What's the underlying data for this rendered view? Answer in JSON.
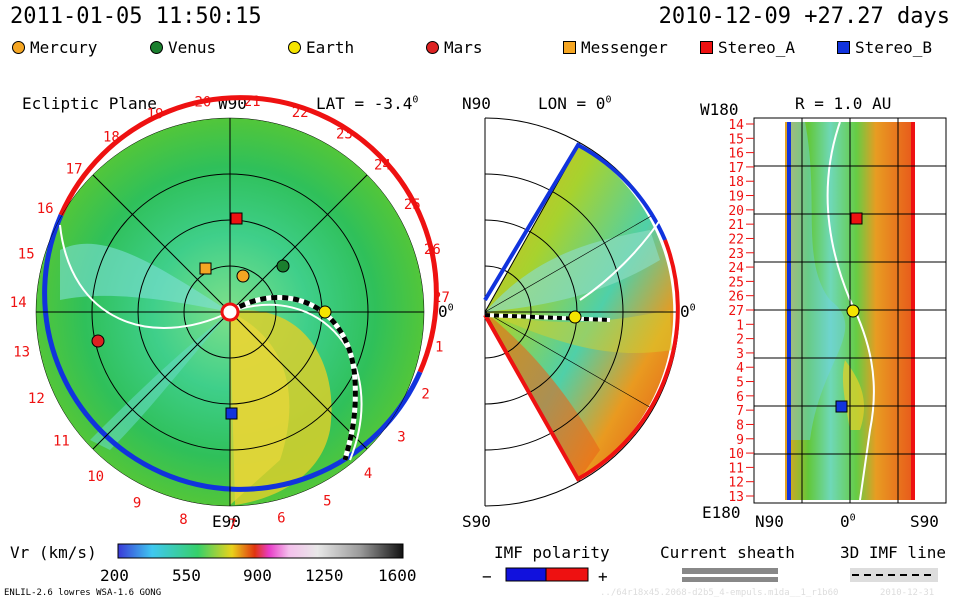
{
  "header": {
    "timestamp": "2011-01-05 11:50:15",
    "carrington": "2010-12-09 +27.27 days"
  },
  "legend": {
    "items": [
      {
        "label": "Mercury",
        "shape": "circle",
        "color": "#f5a623"
      },
      {
        "label": "Venus",
        "shape": "circle",
        "color": "#1a7f2e"
      },
      {
        "label": "Earth",
        "shape": "circle",
        "color": "#f5e400"
      },
      {
        "label": "Mars",
        "shape": "circle",
        "color": "#dd2222"
      },
      {
        "label": "Messenger",
        "shape": "square",
        "color": "#f5a623"
      },
      {
        "label": "Stereo_A",
        "shape": "square",
        "color": "#ee1111"
      },
      {
        "label": "Stereo_B",
        "shape": "square",
        "color": "#1133dd"
      }
    ]
  },
  "panels": {
    "ecliptic": {
      "title": "Ecliptic Plane",
      "top": "W90",
      "lat_label": "LAT = -3.4",
      "lat_sup": "0",
      "right": "0",
      "right_sup": "0",
      "bottom": "E90",
      "day_labels": [
        "1",
        "2",
        "3",
        "4",
        "5",
        "6",
        "7",
        "8",
        "9",
        "10",
        "11",
        "12",
        "13",
        "14",
        "15",
        "16",
        "17",
        "18",
        "19",
        "20",
        "21",
        "22",
        "23",
        "24",
        "25",
        "26",
        "27"
      ]
    },
    "meridional": {
      "top_left": "N90",
      "lon_label": "LON = 0",
      "lon_sup": "0",
      "right": "0",
      "right_sup": "0",
      "bottom_left": "S90"
    },
    "radial": {
      "top_left": "W180",
      "r_label": "R = 1.0 AU",
      "bottom_left": "E180",
      "bottom_n": "N90",
      "bottom_0": "0",
      "bottom_0_sup": "0",
      "bottom_s": "S90",
      "day_labels": [
        "14",
        "15",
        "16",
        "17",
        "18",
        "19",
        "20",
        "21",
        "22",
        "23",
        "24",
        "25",
        "26",
        "27",
        "1",
        "2",
        "3",
        "4",
        "5",
        "6",
        "7",
        "8",
        "9",
        "10",
        "11",
        "12",
        "13"
      ]
    }
  },
  "colorbar": {
    "label": "Vr (km/s)",
    "ticks": [
      "200",
      "550",
      "900",
      "1250",
      "1600"
    ]
  },
  "imf": {
    "label": "IMF polarity",
    "minus": "−",
    "plus": "+",
    "negative_color": "#1111dd",
    "positive_color": "#ee1111"
  },
  "sheath": {
    "label": "Current sheath"
  },
  "imf3d": {
    "label": "3D IMF line"
  },
  "footer": {
    "model": "ENLIL-2.6 lowres WSA-1.6 GONG",
    "run_id": "../64r18x45.2068-d2b5_4-empuls.m1da__1_r1b60",
    "run_date": "2010-12-31"
  }
}
